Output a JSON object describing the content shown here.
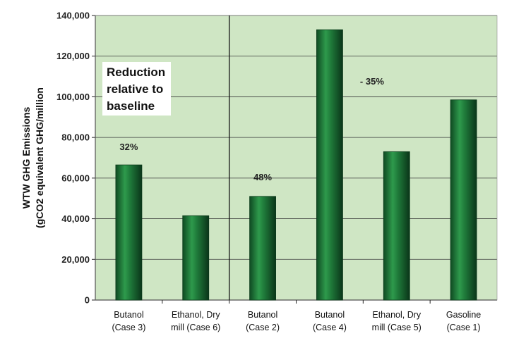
{
  "chart_data": {
    "type": "bar",
    "title": "",
    "ylabel": [
      "WTW GHG Emissions",
      "(gCO2 equivalent GHG/million"
    ],
    "xlabel": "",
    "ylim": [
      0,
      140000
    ],
    "yticks": [
      "0",
      "20,000",
      "40,000",
      "60,000",
      "80,000",
      "100,000",
      "120,000",
      "140,000"
    ],
    "yticks_values": [
      0,
      20000,
      40000,
      60000,
      80000,
      100000,
      120000,
      140000
    ],
    "grid": true,
    "plot_background": "#cfe6c4",
    "bar_color": "#1f7a3a",
    "categories": [
      [
        "Butanol",
        "(Case 3)"
      ],
      [
        "Ethanol, Dry",
        "mill (Case 6)"
      ],
      [
        "Butanol",
        "(Case 2)"
      ],
      [
        "Butanol",
        "(Case 4)"
      ],
      [
        "Ethanol, Dry",
        "mill (Case 5)"
      ],
      [
        "Gasoline",
        "(Case 1)"
      ]
    ],
    "values": [
      66500,
      41500,
      51000,
      133000,
      73000,
      98500
    ],
    "divider_after_index": 1,
    "annotations": [
      {
        "text": "32%",
        "bar_index": 0
      },
      {
        "text": "48%",
        "bar_index": 2
      },
      {
        "text": "- 35%",
        "bar_index": 3
      }
    ],
    "legend_box": [
      "Reduction",
      "relative to",
      "baseline"
    ]
  }
}
